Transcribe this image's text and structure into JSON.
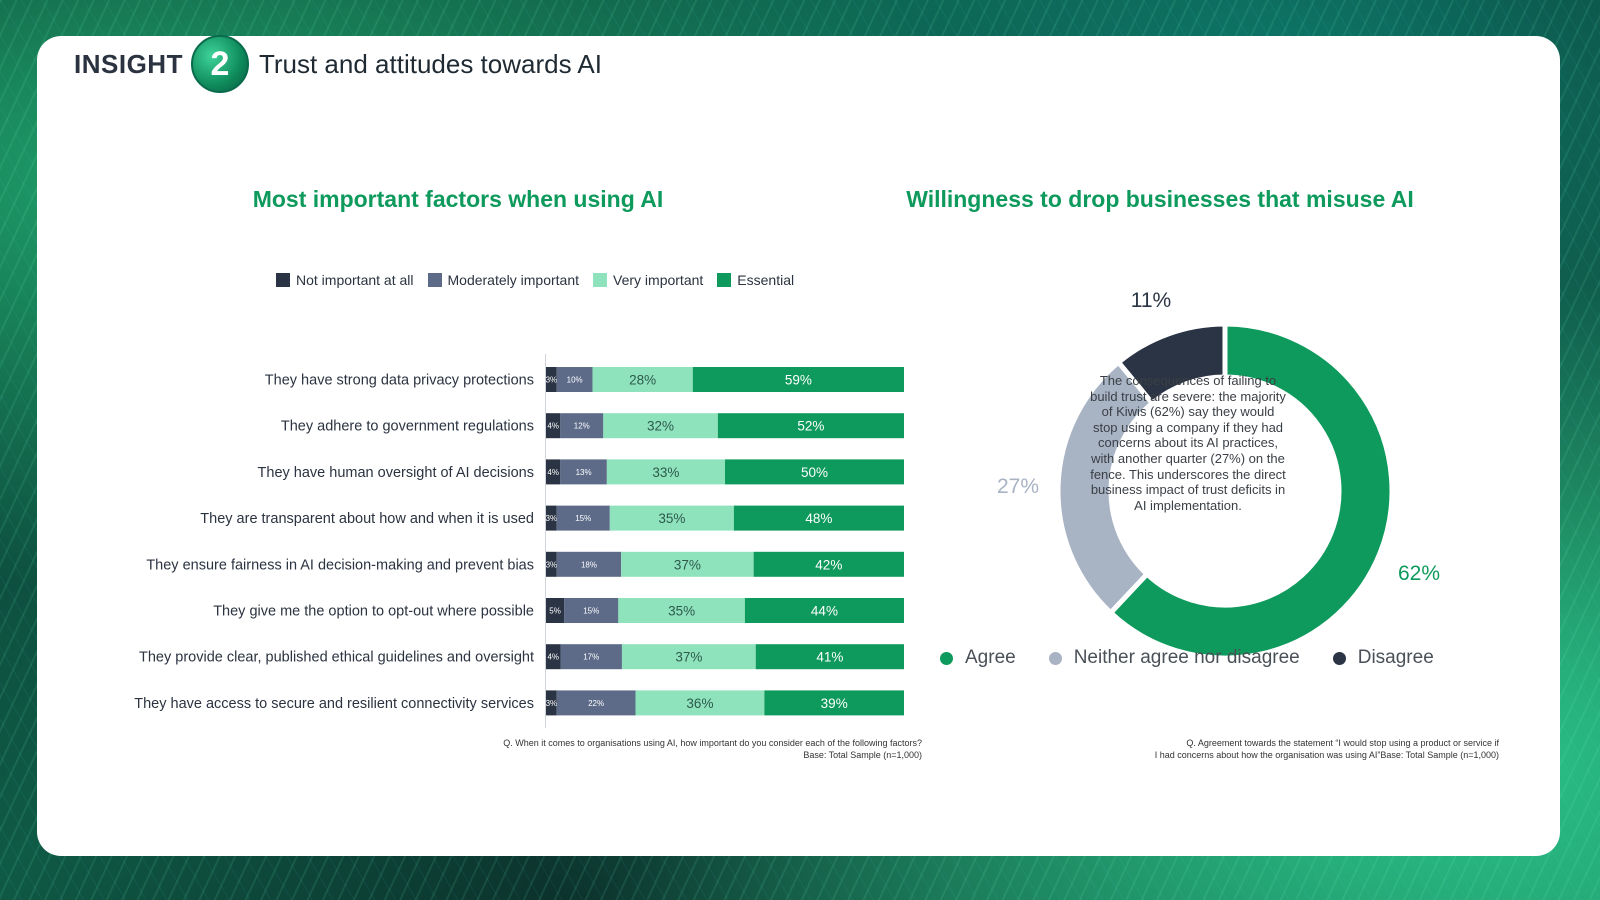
{
  "header": {
    "insight_word": "INSIGHT",
    "insight_number": "2",
    "title": "Trust and attitudes towards AI"
  },
  "left_chart": {
    "title": "Most important factors when using AI",
    "footnote_line1": "Q. When it comes to organisations using AI, how important do you consider each of the following factors?",
    "footnote_line2": "Base: Total Sample (n=1,000)"
  },
  "right_chart": {
    "title": "Willingness to drop businesses that misuse AI",
    "center_text": "The consequences of failing to build trust are severe: the majority of Kiwis (62%) say they would stop using a company if they had concerns about its AI practices, with another quarter (27%) on the fence. This underscores the direct business impact of trust deficits in AI implementation.",
    "footnote_line1": "Q. Agreement towards the statement “I would stop using a product or service if",
    "footnote_line2": "I had concerns about how the organisation was using AI”Base: Total Sample (n=1,000)"
  },
  "chart_data": [
    {
      "type": "bar",
      "stacked": true,
      "orientation": "horizontal",
      "title": "Most important factors when using AI",
      "legend_position": "top",
      "categories": [
        "They have strong data privacy protections",
        "They adhere to government regulations",
        "They have human oversight of AI decisions",
        "They are transparent about how and when it is used",
        "They ensure fairness in AI decision-making and prevent bias",
        "They give me the option to opt-out where possible",
        "They provide clear, published ethical guidelines and oversight",
        "They have access to secure and resilient connectivity services"
      ],
      "series": [
        {
          "name": "Not important at all",
          "color": "#2b3444",
          "values": [
            3,
            4,
            4,
            3,
            3,
            5,
            4,
            3
          ]
        },
        {
          "name": "Moderately important",
          "color": "#5d6b89",
          "values": [
            10,
            12,
            13,
            15,
            18,
            15,
            17,
            22
          ]
        },
        {
          "name": "Very important",
          "color": "#8ee3bd",
          "values": [
            28,
            32,
            33,
            35,
            37,
            35,
            37,
            36
          ]
        },
        {
          "name": "Essential",
          "color": "#0e9a5c",
          "values": [
            59,
            52,
            50,
            48,
            42,
            44,
            41,
            39
          ]
        }
      ]
    },
    {
      "type": "pie",
      "donut": true,
      "title": "Willingness to drop businesses that misuse AI",
      "legend_position": "bottom",
      "slices": [
        {
          "label": "Agree",
          "value": 62,
          "value_label": "62%",
          "color": "#0e9a5c"
        },
        {
          "label": "Neither agree nor disagree",
          "value": 27,
          "value_label": "27%",
          "color": "#a8b3c4"
        },
        {
          "label": "Disagree",
          "value": 11,
          "value_label": "11%",
          "color": "#2b3444"
        }
      ]
    }
  ]
}
